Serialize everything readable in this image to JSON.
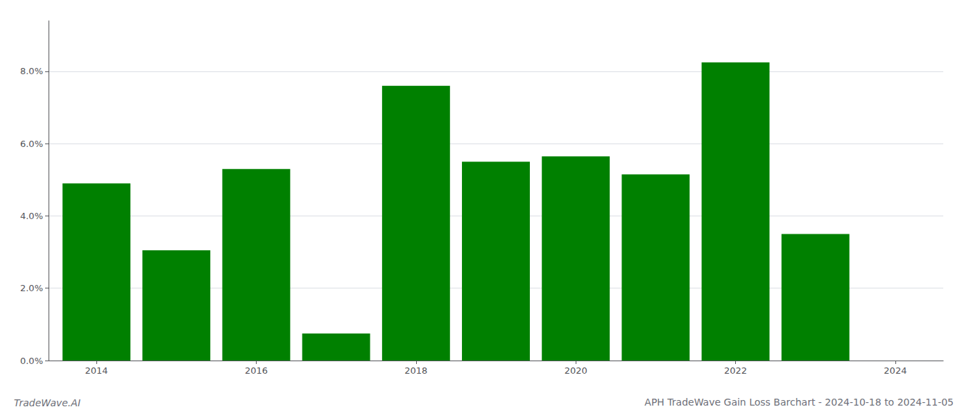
{
  "chart_data": {
    "type": "bar",
    "title": "APH TradeWave Gain Loss Barchart - 2024-10-18 to 2024-11-05",
    "annotations": [
      "TradeWave.AI"
    ],
    "x": [
      2014,
      2015,
      2016,
      2017,
      2018,
      2019,
      2020,
      2021,
      2022,
      2023
    ],
    "values": [
      0.049,
      0.0305,
      0.053,
      0.0075,
      0.076,
      0.055,
      0.0565,
      0.0515,
      0.0825,
      0.035
    ],
    "color": "#008000",
    "xlim": [
      2013.4,
      2024.6
    ],
    "xticks": [
      2014,
      2016,
      2018,
      2020,
      2022,
      2024
    ],
    "ylim": [
      0,
      0.094
    ],
    "yticks": [
      {
        "value": 0.0,
        "label": "0.0%"
      },
      {
        "value": 0.02,
        "label": "2.0%"
      },
      {
        "value": 0.04,
        "label": "4.0%"
      },
      {
        "value": 0.06,
        "label": "6.0%"
      },
      {
        "value": 0.08,
        "label": "8.0%"
      }
    ],
    "grid": true
  }
}
